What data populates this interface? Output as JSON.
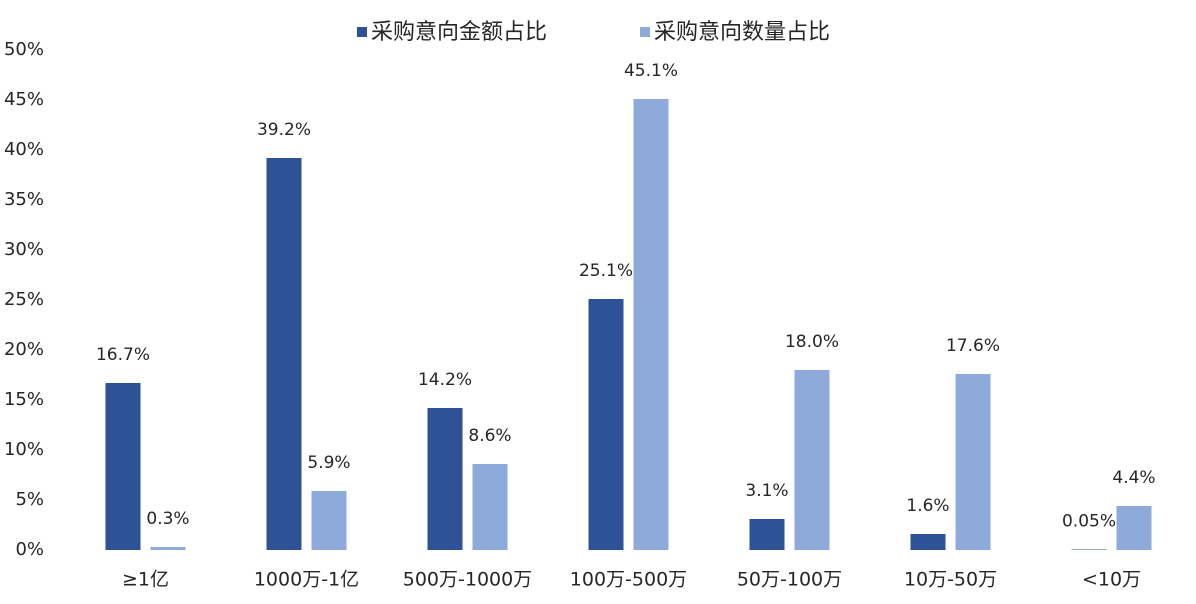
{
  "chart_data": {
    "type": "bar",
    "categories": [
      "≥1亿",
      "1000万-1亿",
      "500万-1000万",
      "100万-500万",
      "50万-100万",
      "10万-50万",
      "<10万"
    ],
    "series": [
      {
        "name": "采购意向金额占比",
        "color": "#2d5296",
        "values": [
          16.7,
          39.2,
          14.2,
          25.1,
          3.1,
          1.6,
          0.05
        ],
        "value_labels": [
          "16.7%",
          "39.2%",
          "14.2%",
          "25.1%",
          "3.1%",
          "1.6%",
          "0.05%"
        ]
      },
      {
        "name": "采购意向数量占比",
        "color": "#8eaadb",
        "values": [
          0.3,
          5.9,
          8.6,
          45.1,
          18.0,
          17.6,
          4.4
        ],
        "value_labels": [
          "0.3%",
          "5.9%",
          "8.6%",
          "45.1%",
          "18.0%",
          "17.6%",
          "4.4%"
        ]
      }
    ],
    "ylim": [
      0,
      50
    ],
    "yticks": [
      {
        "value": 0,
        "label": "0%"
      },
      {
        "value": 5,
        "label": "5%"
      },
      {
        "value": 10,
        "label": "10%"
      },
      {
        "value": 15,
        "label": "15%"
      },
      {
        "value": 20,
        "label": "20%"
      },
      {
        "value": 25,
        "label": "25%"
      },
      {
        "value": 30,
        "label": "30%"
      },
      {
        "value": 35,
        "label": "35%"
      },
      {
        "value": 40,
        "label": "40%"
      },
      {
        "value": 45,
        "label": "45%"
      },
      {
        "value": 50,
        "label": "50%"
      }
    ],
    "grid": false,
    "legend": "top"
  }
}
